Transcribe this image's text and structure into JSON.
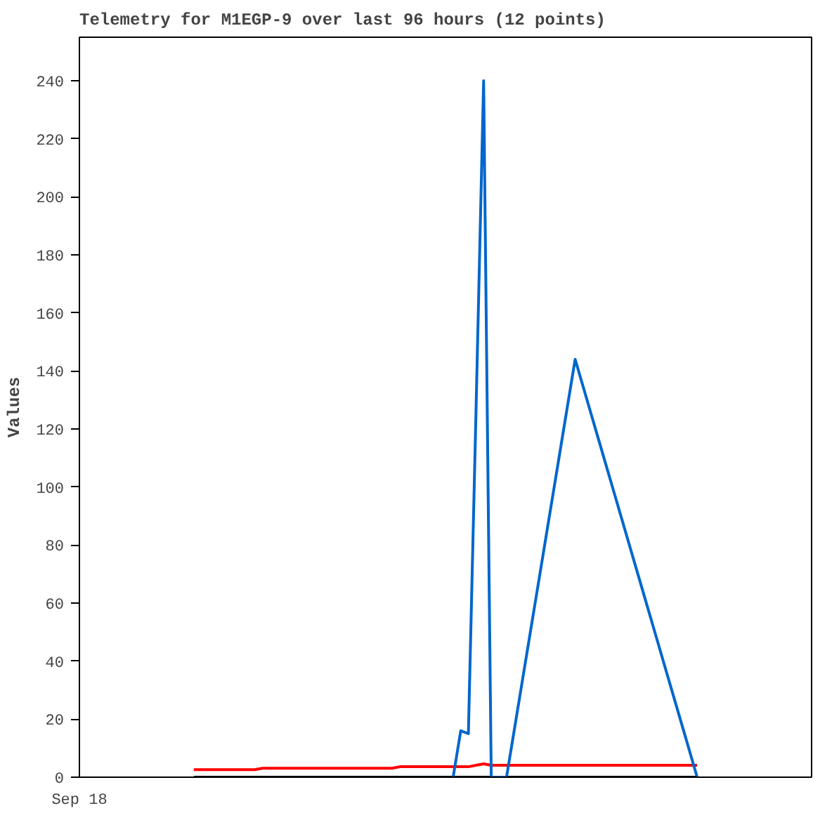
{
  "chart_data": {
    "type": "line",
    "title": "Telemetry for M1EGP-9 over last 96 hours (12 points)",
    "ylabel": "Values",
    "categories": [
      null,
      null,
      null,
      null,
      null,
      null,
      null,
      null,
      null,
      null,
      null,
      null,
      null,
      null,
      null,
      null,
      null,
      null,
      null,
      null,
      null,
      null,
      null,
      null,
      null,
      null,
      null,
      null,
      null,
      null,
      null,
      null,
      null,
      null,
      null,
      null,
      null,
      null,
      null,
      null,
      null,
      null,
      null,
      null,
      null,
      null,
      null,
      null,
      null,
      null,
      null,
      null,
      null,
      null,
      null,
      null,
      null,
      null,
      null,
      null,
      null,
      null,
      null,
      null,
      null,
      null,
      null,
      null,
      null,
      null,
      null,
      null,
      null,
      null,
      null,
      null,
      null,
      null,
      null,
      null,
      null,
      null,
      null,
      null,
      null,
      null,
      null,
      null,
      null,
      null,
      null,
      null,
      null,
      null,
      null,
      null,
      null
    ],
    "annotations": [
      "Sep 18"
    ],
    "ylim": [
      0,
      255
    ],
    "yticks": [
      0,
      20,
      40,
      60,
      80,
      100,
      120,
      140,
      160,
      180,
      200,
      220,
      240
    ],
    "grid": false,
    "marker": "none",
    "line_style": "solid",
    "series": [
      {
        "color": "#ff0000",
        "values": [
          null,
          null,
          null,
          null,
          null,
          null,
          null,
          null,
          null,
          null,
          null,
          null,
          null,
          null,
          null,
          2.6,
          2.6,
          2.6,
          2.6,
          2.6,
          2.6,
          2.6,
          2.6,
          2.6,
          3.1,
          3.1,
          3.1,
          3.1,
          3.1,
          3.1,
          3.1,
          3.1,
          3.1,
          3.1,
          3.1,
          3.1,
          3.1,
          3.1,
          3.1,
          3.1,
          3.1,
          3.1,
          3.6,
          3.6,
          3.6,
          3.6,
          3.6,
          3.6,
          3.6,
          3.6,
          3.6,
          3.6,
          4.1,
          4.6,
          4.1,
          4.1,
          4.1,
          4.1,
          4.1,
          4.1,
          4.1,
          4.1,
          4.1,
          4.1,
          4.1,
          4.1,
          4.1,
          4.1,
          4.1,
          4.1,
          4.1,
          4.1,
          4.1,
          4.1,
          4.1,
          4.1,
          4.1,
          4.1,
          4.1,
          4.1,
          4.1,
          4.1,
          null,
          null,
          null,
          null,
          null,
          null,
          null,
          null,
          null,
          null,
          null,
          null,
          null,
          null,
          null
        ]
      },
      {
        "color": "#000000",
        "values": [
          null,
          null,
          null,
          null,
          null,
          null,
          null,
          null,
          null,
          null,
          null,
          null,
          null,
          null,
          null,
          0,
          0,
          0,
          0,
          0,
          0,
          0,
          0,
          0,
          0,
          0,
          0,
          0,
          0,
          0,
          0,
          0,
          0,
          0,
          0,
          0,
          0,
          0,
          0,
          0,
          0,
          0,
          0,
          0,
          0,
          0,
          0,
          0,
          0,
          0,
          0,
          0,
          0,
          0,
          0,
          0,
          0,
          0,
          0,
          0,
          0,
          0,
          0,
          0,
          0,
          0,
          0,
          0,
          0,
          0,
          0,
          0,
          0,
          0,
          0,
          0,
          0,
          0,
          0,
          0,
          0,
          0,
          null,
          null,
          null,
          null,
          null,
          null,
          null,
          null,
          null,
          null,
          null,
          null,
          null,
          null,
          null
        ]
      },
      {
        "color": "#0066cc",
        "values": [
          null,
          null,
          null,
          null,
          null,
          null,
          null,
          null,
          null,
          null,
          null,
          null,
          null,
          null,
          null,
          null,
          null,
          null,
          null,
          null,
          null,
          null,
          null,
          null,
          null,
          null,
          null,
          null,
          null,
          null,
          null,
          null,
          null,
          null,
          null,
          null,
          null,
          null,
          null,
          null,
          null,
          null,
          null,
          null,
          null,
          null,
          null,
          null,
          null,
          0,
          16,
          15,
          126,
          240,
          0,
          0,
          0,
          16,
          32,
          48,
          64,
          80,
          96,
          112,
          128,
          144,
          135,
          126,
          117,
          108,
          99,
          90,
          81,
          72,
          63,
          54,
          45,
          36,
          27,
          18,
          9,
          0,
          null,
          null,
          null,
          null,
          null,
          null,
          null,
          null,
          null,
          null,
          null,
          null,
          null,
          null,
          null
        ]
      }
    ]
  }
}
